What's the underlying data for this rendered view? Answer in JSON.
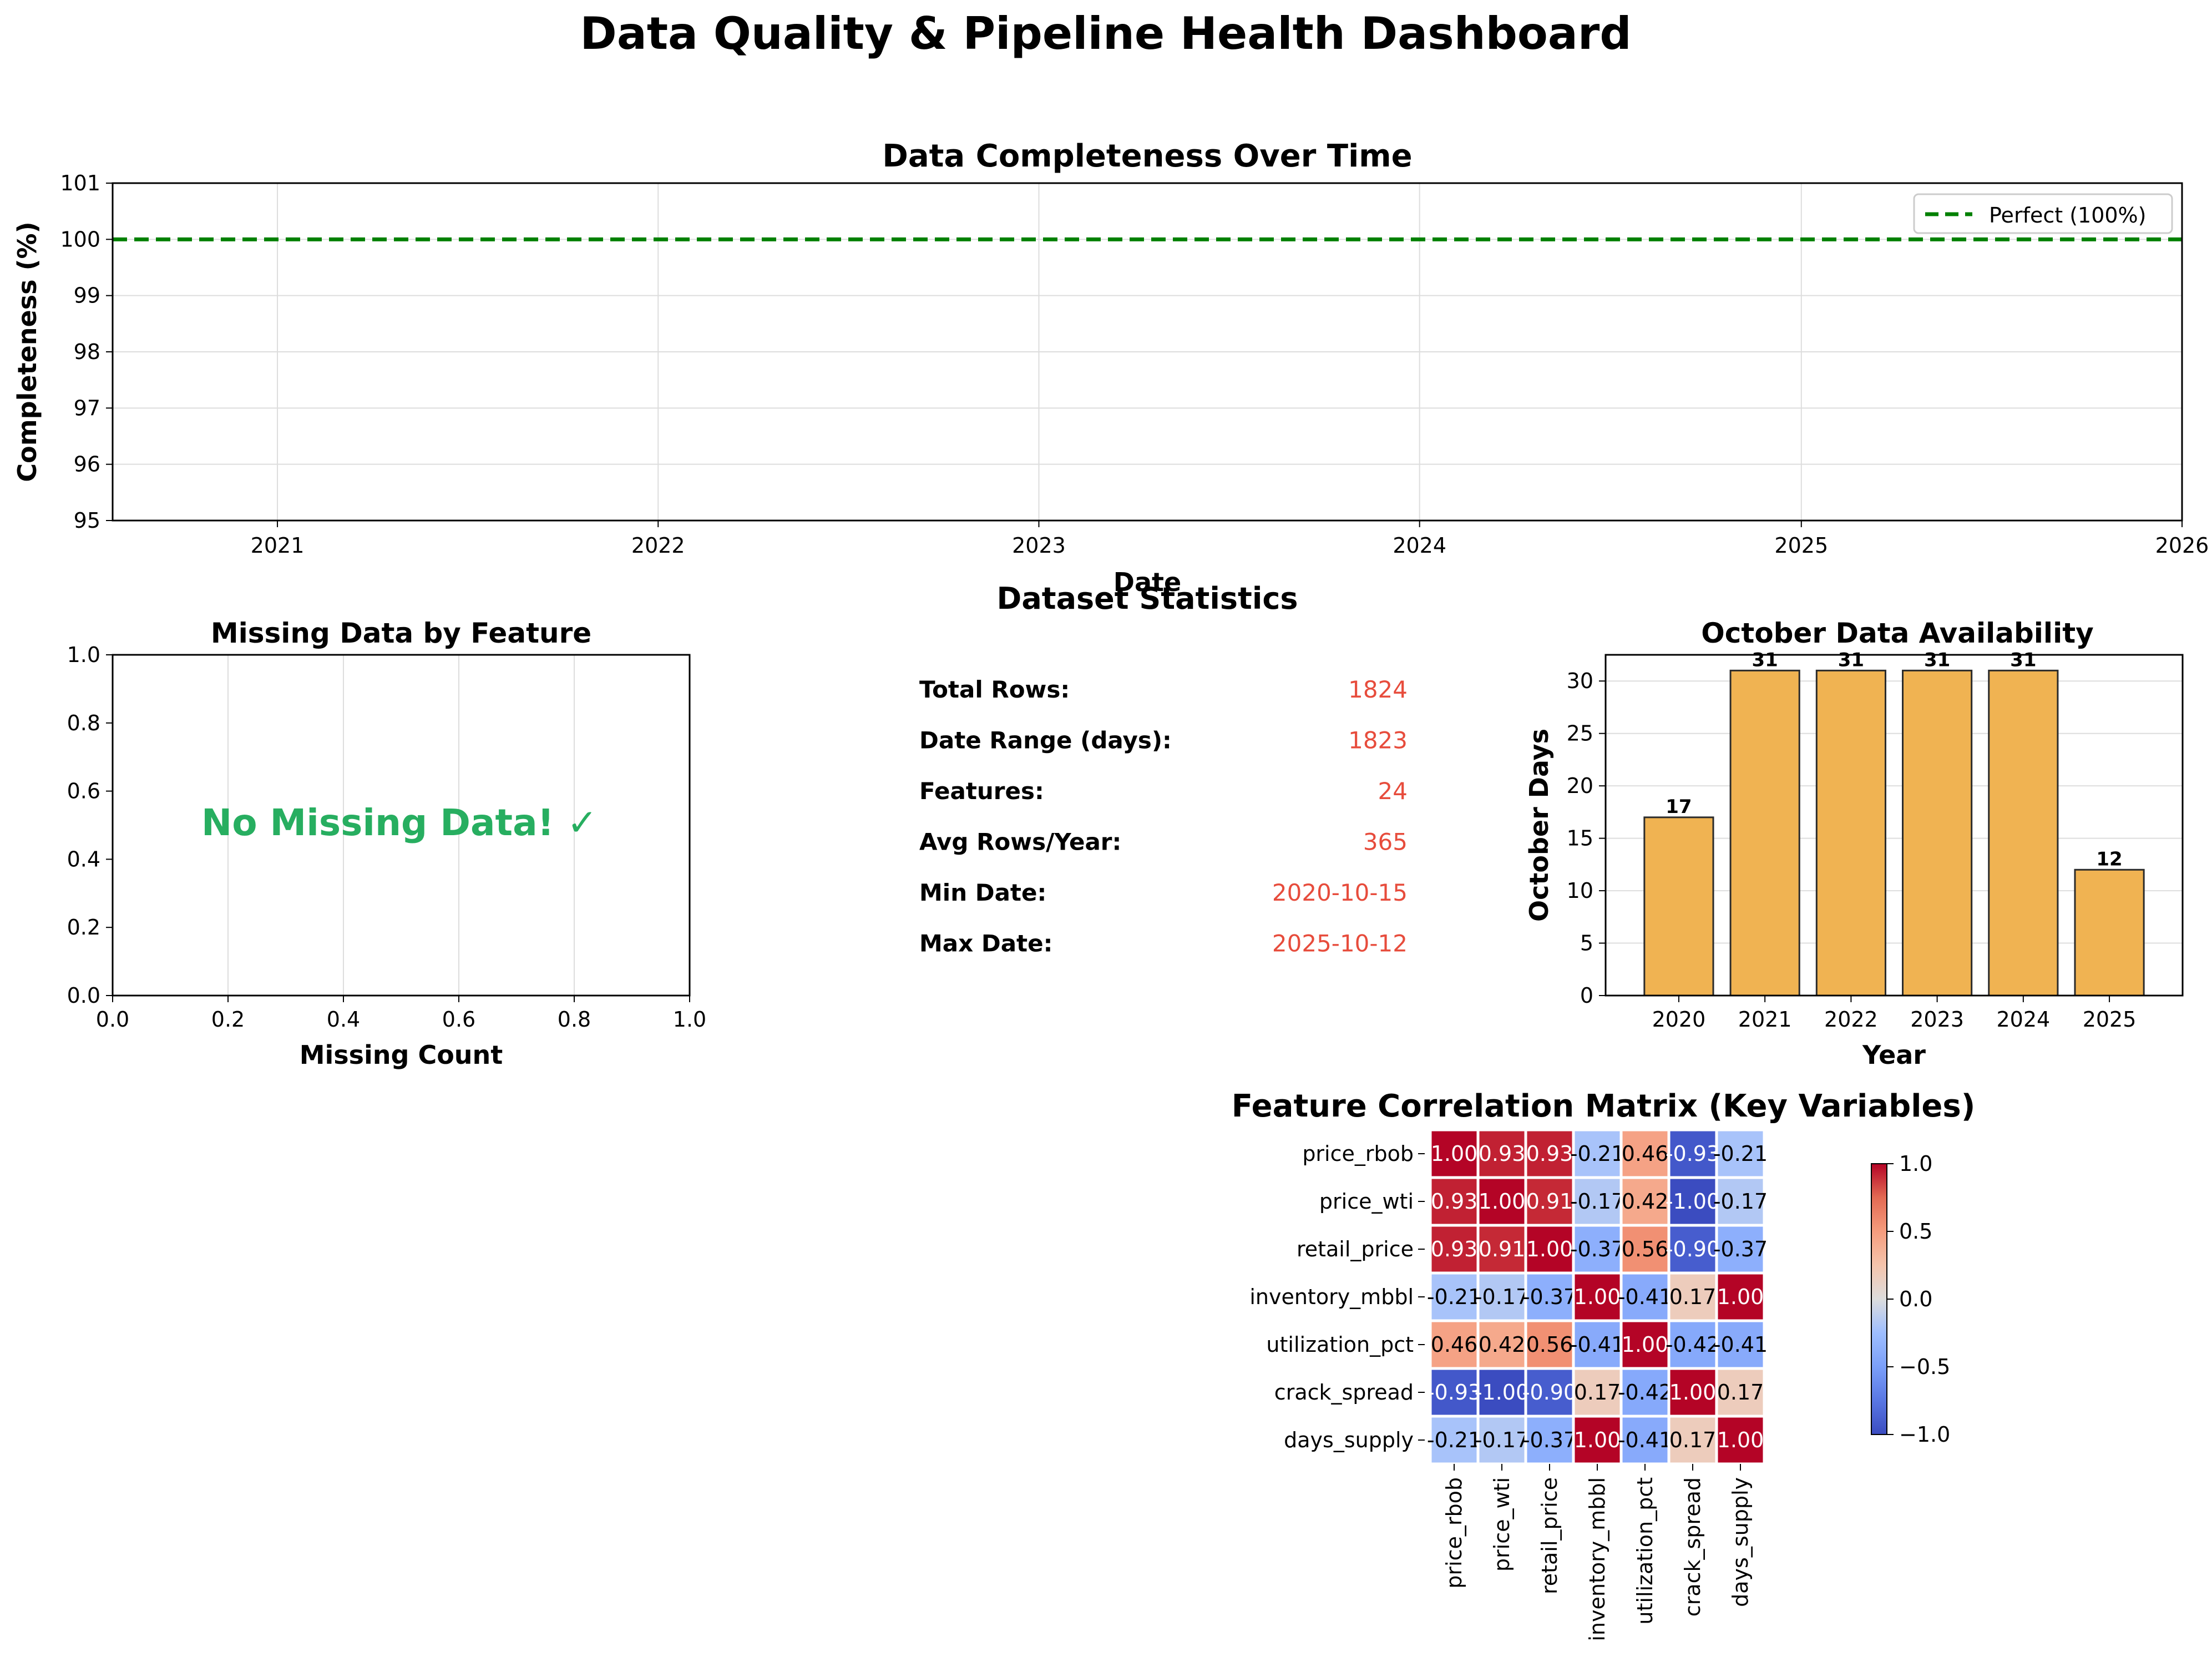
{
  "title": "Data Quality & Pipeline Health Dashboard",
  "colors": {
    "perfect_line": "#008000",
    "no_missing_text": "#27ae60",
    "stat_value": "#e74c3c",
    "bar_fill": "#f0b352",
    "bar_edge": "#2b2b2b",
    "grid": "#dddddd"
  },
  "chart_data": [
    {
      "type": "line",
      "title": "Data Completeness Over Time",
      "xlabel": "Date",
      "ylabel": "Completeness (%)",
      "x_ticks": [
        "2021",
        "2022",
        "2023",
        "2024",
        "2025",
        "2026"
      ],
      "xlim": [
        "2020-07-27",
        "2026-01-01"
      ],
      "y_ticks": [
        "95",
        "96",
        "97",
        "98",
        "99",
        "100",
        "101"
      ],
      "ylim": [
        95,
        101
      ],
      "series": [
        {
          "name": "Perfect (100%)",
          "style": "dashed",
          "color": "#008000",
          "x": [
            "2020-07-27",
            "2026-01-01"
          ],
          "y": [
            100,
            100
          ]
        }
      ],
      "legend": {
        "position": "upper right",
        "entries": [
          "Perfect (100%)"
        ]
      },
      "grid": true
    },
    {
      "type": "bar",
      "title": "Missing Data by Feature",
      "xlabel": "Missing Count",
      "ylabel": "",
      "xlim": [
        0,
        1
      ],
      "ylim": [
        0,
        1
      ],
      "x_ticks": [
        "0.0",
        "0.2",
        "0.4",
        "0.6",
        "0.8",
        "1.0"
      ],
      "y_ticks": [
        "0.0",
        "0.2",
        "0.4",
        "0.6",
        "0.8",
        "1.0"
      ],
      "categories": [],
      "values": [],
      "annotation": "No Missing Data! ✓",
      "grid": true
    },
    {
      "type": "table",
      "title": "Dataset Statistics",
      "rows": [
        {
          "label": "Total Rows:",
          "value": "1824"
        },
        {
          "label": "Date Range (days):",
          "value": "1823"
        },
        {
          "label": "Features:",
          "value": "24"
        },
        {
          "label": "Avg Rows/Year:",
          "value": "365"
        },
        {
          "label": "Min Date:",
          "value": "2020-10-15"
        },
        {
          "label": "Max Date:",
          "value": "2025-10-12"
        }
      ]
    },
    {
      "type": "bar",
      "title": "October Data Availability",
      "xlabel": "Year",
      "ylabel": "October Days",
      "categories": [
        "2020",
        "2021",
        "2022",
        "2023",
        "2024",
        "2025"
      ],
      "values": [
        17,
        31,
        31,
        31,
        31,
        12
      ],
      "data_labels": [
        "17",
        "31",
        "31",
        "31",
        "31",
        "12"
      ],
      "ylim": [
        0,
        32.5
      ],
      "y_ticks": [
        "0",
        "5",
        "10",
        "15",
        "20",
        "25",
        "30"
      ],
      "grid": true
    },
    {
      "type": "heatmap",
      "title": "Feature Correlation Matrix (Key Variables)",
      "labels": [
        "price_rbob",
        "price_wti",
        "retail_price",
        "inventory_mbbl",
        "utilization_pct",
        "crack_spread",
        "days_supply"
      ],
      "values": [
        [
          1.0,
          0.93,
          0.93,
          -0.21,
          0.46,
          -0.93,
          -0.21
        ],
        [
          0.93,
          1.0,
          0.91,
          -0.17,
          0.42,
          -1.0,
          -0.17
        ],
        [
          0.93,
          0.91,
          1.0,
          -0.37,
          0.56,
          -0.9,
          -0.37
        ],
        [
          -0.21,
          -0.17,
          -0.37,
          1.0,
          -0.41,
          0.17,
          1.0
        ],
        [
          0.46,
          0.42,
          0.56,
          -0.41,
          1.0,
          -0.42,
          -0.41
        ],
        [
          -0.93,
          -1.0,
          -0.9,
          0.17,
          -0.42,
          1.0,
          0.17
        ],
        [
          -0.21,
          -0.17,
          -0.37,
          1.0,
          -0.41,
          0.17,
          1.0
        ]
      ],
      "cell_labels": [
        [
          "1.00",
          "0.93",
          "0.93",
          "-0.21",
          "0.46",
          "-0.93",
          "-0.21"
        ],
        [
          "0.93",
          "1.00",
          "0.91",
          "-0.17",
          "0.42",
          "-1.00",
          "-0.17"
        ],
        [
          "0.93",
          "0.91",
          "1.00",
          "-0.37",
          "0.56",
          "-0.90",
          "-0.37"
        ],
        [
          "-0.21",
          "-0.17",
          "-0.37",
          "1.00",
          "-0.41",
          "0.17",
          "1.00"
        ],
        [
          "0.46",
          "0.42",
          "0.56",
          "-0.41",
          "1.00",
          "-0.42",
          "-0.41"
        ],
        [
          "-0.93",
          "-1.00",
          "-0.90",
          "0.17",
          "-0.42",
          "1.00",
          "0.17"
        ],
        [
          "-0.21",
          "-0.17",
          "-0.37",
          "1.00",
          "-0.41",
          "0.17",
          "1.00"
        ]
      ],
      "colormap": "coolwarm",
      "vmin": -1.0,
      "vmax": 1.0,
      "colorbar_ticks": [
        "1.0",
        "0.5",
        "0.0",
        "−0.5",
        "−1.0"
      ]
    }
  ]
}
